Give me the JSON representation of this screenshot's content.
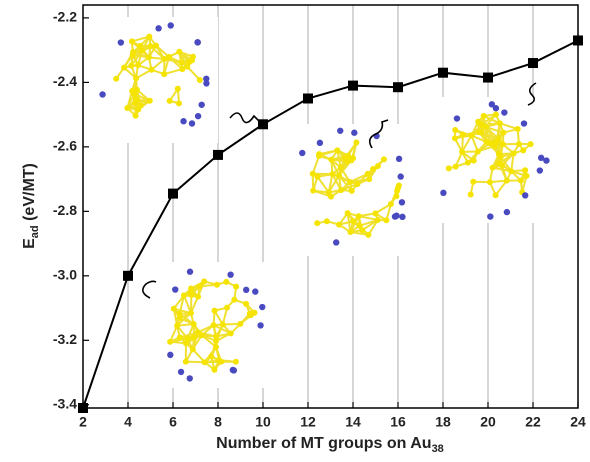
{
  "chart_data": {
    "type": "line",
    "x_label": [
      "Number of MT groups on Au",
      "38"
    ],
    "y_label": [
      "E",
      "ad",
      " (eV/MT)"
    ],
    "x": [
      2,
      4,
      6,
      8,
      10,
      12,
      14,
      16,
      18,
      20,
      22,
      24
    ],
    "series": [
      {
        "color": "#000000",
        "values": [
          -3.41,
          -3.0,
          -2.745,
          -2.625,
          -2.53,
          -2.45,
          -2.41,
          -2.415,
          -2.37,
          -2.385,
          -2.34,
          -2.27
        ]
      }
    ],
    "xlim": [
      2,
      24
    ],
    "ylim": [
      -3.41,
      -2.16
    ],
    "xticks": [
      2,
      4,
      6,
      8,
      10,
      12,
      14,
      16,
      18,
      20,
      22,
      24
    ],
    "yticks": [
      -3.4,
      -3.2,
      {
        "value": -3,
        "label": "-3.0"
      },
      -2.8,
      -2.6,
      -2.4,
      -2.2
    ],
    "grid": true
  }
}
